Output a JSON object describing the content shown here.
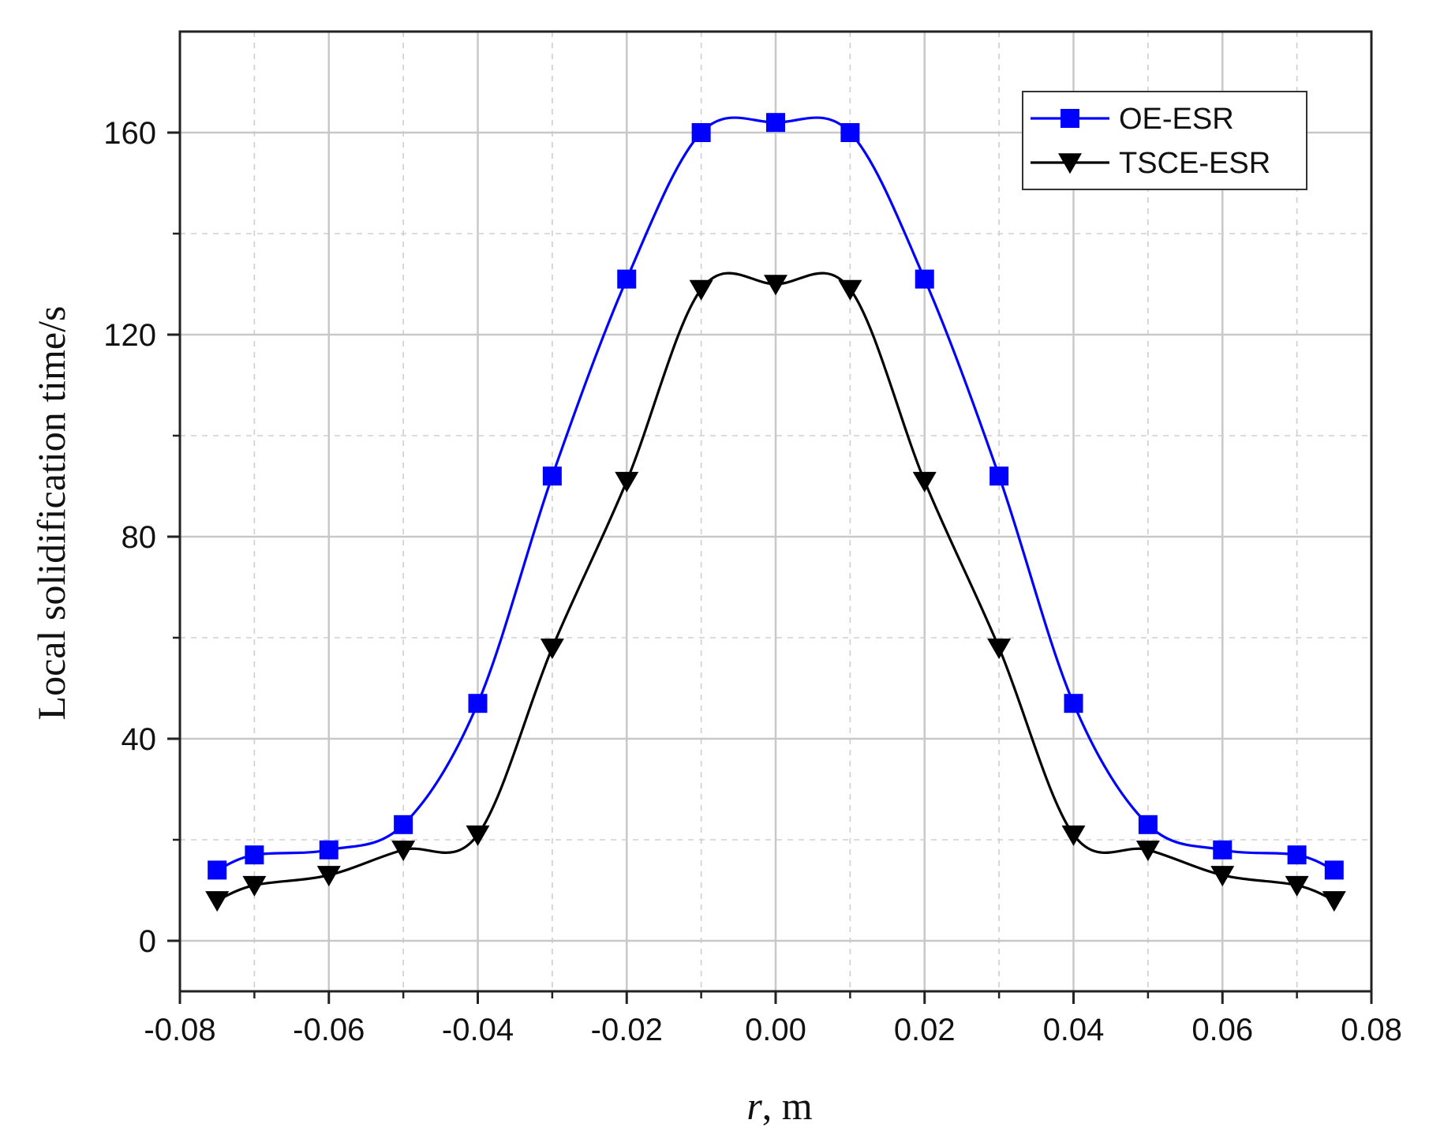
{
  "chart_data": {
    "type": "line",
    "xlabel_italic": "r",
    "xlabel_rest": ", m",
    "ylabel": "Local solidification time/s",
    "xlim": [
      -0.08,
      0.08
    ],
    "ylim": [
      -10,
      180
    ],
    "x_ticks": [
      -0.08,
      -0.06,
      -0.04,
      -0.02,
      0.0,
      0.02,
      0.04,
      0.06,
      0.08
    ],
    "x_tick_labels": [
      "-0.08",
      "-0.06",
      "-0.04",
      "-0.02",
      "0.00",
      "0.02",
      "0.04",
      "0.06",
      "0.08"
    ],
    "y_ticks": [
      0,
      40,
      80,
      120,
      160
    ],
    "y_tick_labels": [
      "0",
      "40",
      "80",
      "120",
      "160"
    ],
    "grid": true,
    "legend_position": "top-right",
    "series": [
      {
        "name": "OE-ESR",
        "color": "#0000ff",
        "marker": "square",
        "x": [
          -0.075,
          -0.07,
          -0.06,
          -0.05,
          -0.04,
          -0.03,
          -0.02,
          -0.01,
          0.0,
          0.01,
          0.02,
          0.03,
          0.04,
          0.05,
          0.06,
          0.07,
          0.075
        ],
        "y": [
          14,
          17,
          18,
          23,
          47,
          92,
          131,
          160,
          162,
          160,
          131,
          92,
          47,
          23,
          18,
          17,
          14
        ]
      },
      {
        "name": "TSCE-ESR",
        "color": "#000000",
        "marker": "triangle-down",
        "x": [
          -0.075,
          -0.07,
          -0.06,
          -0.05,
          -0.04,
          -0.03,
          -0.02,
          -0.01,
          0.0,
          0.01,
          0.02,
          0.03,
          0.04,
          0.05,
          0.06,
          0.07,
          0.075
        ],
        "y": [
          8,
          11,
          13,
          18,
          21,
          58,
          91,
          129,
          130,
          129,
          91,
          58,
          21,
          18,
          13,
          11,
          8
        ]
      }
    ]
  }
}
